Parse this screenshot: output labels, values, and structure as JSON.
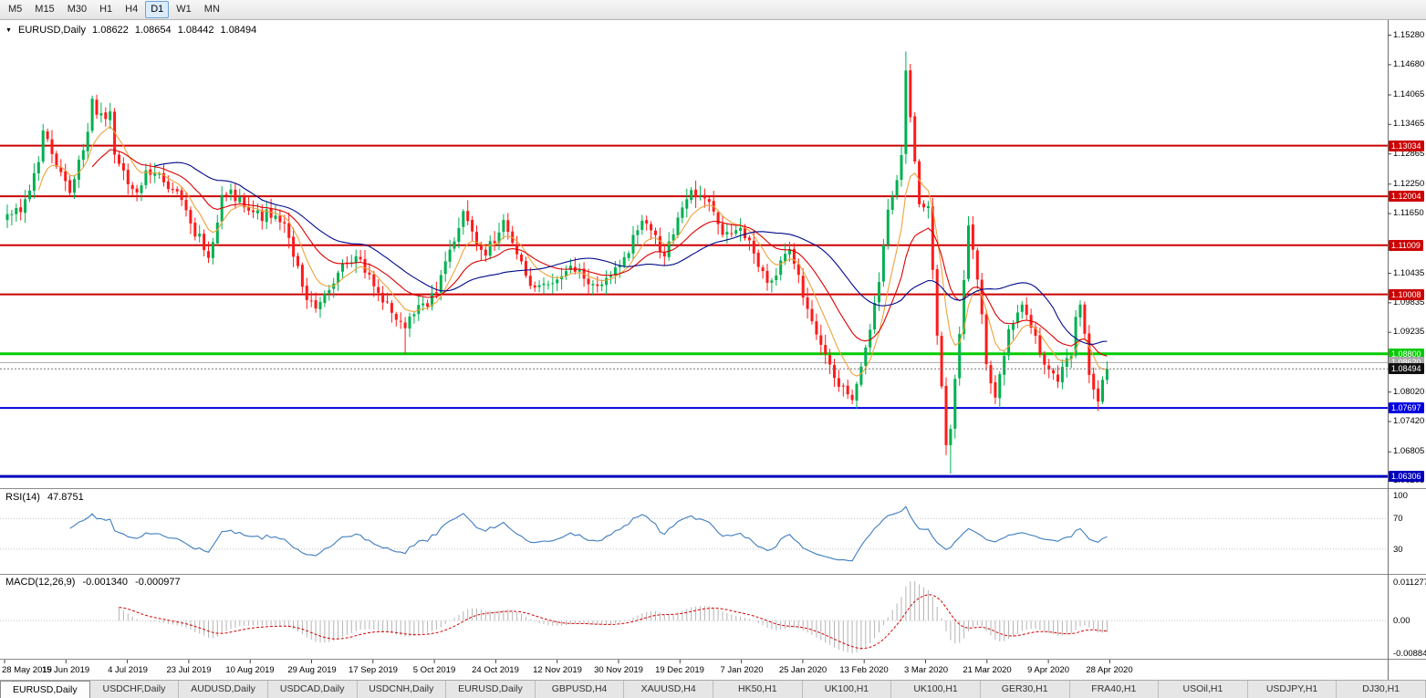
{
  "header": {
    "timeframes": [
      "M5",
      "M15",
      "M30",
      "H1",
      "H4",
      "D1",
      "W1",
      "MN"
    ],
    "active_timeframe": "D1"
  },
  "chart": {
    "symbol": "EURUSD,Daily",
    "open": "1.08622",
    "high": "1.08654",
    "low": "1.08442",
    "close": "1.08494"
  },
  "chart_data": {
    "type": "candlestick",
    "symbol": "EURUSD",
    "timeframe": "Daily",
    "bars": 247,
    "y_range": [
      1.0614,
      1.1555
    ],
    "price_anchors": [
      [
        0,
        1.1164
      ],
      [
        3,
        1.1168
      ],
      [
        7,
        1.127
      ],
      [
        8,
        1.1334
      ],
      [
        14,
        1.1207
      ],
      [
        17,
        1.1294
      ],
      [
        19,
        1.1399
      ],
      [
        20,
        1.1366
      ],
      [
        23,
        1.1373
      ],
      [
        24,
        1.1285
      ],
      [
        29,
        1.1208
      ],
      [
        31,
        1.1253
      ],
      [
        38,
        1.121
      ],
      [
        41,
        1.1145
      ],
      [
        45,
        1.1075
      ],
      [
        48,
        1.1203
      ],
      [
        52,
        1.1199
      ],
      [
        54,
        1.1171
      ],
      [
        62,
        1.1145
      ],
      [
        67,
        1.0989
      ],
      [
        69,
        1.0972
      ],
      [
        74,
        1.1045
      ],
      [
        76,
        1.1064
      ],
      [
        79,
        1.1072
      ],
      [
        82,
        1.1017
      ],
      [
        89,
        1.0932
      ],
      [
        92,
        1.0979
      ],
      [
        96,
        1.1004
      ],
      [
        97,
        1.104
      ],
      [
        102,
        1.117
      ],
      [
        103,
        1.115
      ],
      [
        107,
        1.108
      ],
      [
        111,
        1.1152
      ],
      [
        117,
        1.1018
      ],
      [
        121,
        1.1021
      ],
      [
        126,
        1.1059
      ],
      [
        132,
        1.1018
      ],
      [
        137,
        1.106
      ],
      [
        141,
        1.1131
      ],
      [
        143,
        1.1145
      ],
      [
        147,
        1.1078
      ],
      [
        153,
        1.1213
      ],
      [
        156,
        1.1196
      ],
      [
        160,
        1.1122
      ],
      [
        164,
        1.1136
      ],
      [
        170,
        1.1024
      ],
      [
        175,
        1.1093
      ],
      [
        180,
        1.0946
      ],
      [
        185,
        1.0831
      ],
      [
        189,
        1.0786
      ],
      [
        191,
        1.0854
      ],
      [
        195,
        1.1026
      ],
      [
        197,
        1.1173
      ],
      [
        200,
        1.1284
      ],
      [
        201,
        1.1456
      ],
      [
        203,
        1.1271
      ],
      [
        204,
        1.1184
      ],
      [
        206,
        1.118
      ],
      [
        208,
        1.0917
      ],
      [
        210,
        1.0694
      ],
      [
        211,
        1.0727
      ],
      [
        214,
        1.103
      ],
      [
        215,
        1.1141
      ],
      [
        217,
        1.1031
      ],
      [
        219,
        1.0859
      ],
      [
        221,
        1.0791
      ],
      [
        224,
        1.093
      ],
      [
        227,
        1.098
      ],
      [
        232,
        1.0858
      ],
      [
        235,
        1.0823
      ],
      [
        238,
        1.0875
      ],
      [
        239,
        1.0955
      ],
      [
        240,
        1.098
      ],
      [
        242,
        1.0837
      ],
      [
        244,
        1.0783
      ],
      [
        246,
        1.08494
      ]
    ],
    "extremes": [
      {
        "i": 201,
        "high": 1.1495
      },
      {
        "i": 211,
        "low": 1.0636
      },
      {
        "i": 89,
        "low": 1.0879
      },
      {
        "i": 189,
        "low": 1.0778
      },
      {
        "i": 244,
        "low": 1.0767
      }
    ],
    "horizontal_lines": [
      {
        "price": 1.13034,
        "label": "1.13034",
        "color": "#cc0000",
        "width": 2
      },
      {
        "price": 1.12004,
        "label": "1.12004",
        "color": "#cc0000",
        "width": 2
      },
      {
        "price": 1.11009,
        "label": "1.11009",
        "color": "#cc0000",
        "width": 2
      },
      {
        "price": 1.10008,
        "label": "1.10008",
        "color": "#cc0000",
        "width": 2
      },
      {
        "price": 1.088,
        "label": "1.08800",
        "color": "#00cc00",
        "width": 3
      },
      {
        "price": 1.0862,
        "label": "1.08620",
        "color": "#a8a8a8",
        "width": 1
      },
      {
        "price": 1.07697,
        "label": "1.07697",
        "color": "#0000e0",
        "width": 2
      },
      {
        "price": 1.06306,
        "label": "1.06306",
        "color": "#0000bb",
        "width": 3
      }
    ],
    "current_price": {
      "label": "1.08494",
      "value": 1.08494,
      "bg": "#111111"
    },
    "y_ticks": [
      "1.15280",
      "1.14680",
      "1.14065",
      "1.13465",
      "1.12865",
      "1.12250",
      "1.11650",
      "1.10435",
      "1.09835",
      "1.09235",
      "1.08020",
      "1.07420",
      "1.06805",
      "1.06205"
    ],
    "dates": [
      "28 May 2019",
      "15 Jun 2019",
      "4 Jul 2019",
      "23 Jul 2019",
      "10 Aug 2019",
      "29 Aug 2019",
      "17 Sep 2019",
      "5 Oct 2019",
      "24 Oct 2019",
      "12 Nov 2019",
      "30 Nov 2019",
      "19 Dec 2019",
      "7 Jan 2020",
      "25 Jan 2020",
      "13 Feb 2020",
      "3 Mar 2020",
      "21 Mar 2020",
      "9 Apr 2020",
      "28 Apr 2020"
    ],
    "candle_colors": {
      "up": "#00b050",
      "down": "#ff1a1a"
    },
    "moving_averages": [
      {
        "name": "fast",
        "method": "ema",
        "period": 8,
        "color": "#eda33c"
      },
      {
        "name": "mid",
        "method": "ema",
        "period": 20,
        "color": "#dd0000"
      },
      {
        "name": "slow",
        "method": "sma",
        "period": 34,
        "color": "#000a8c"
      }
    ],
    "indicators": {
      "rsi": {
        "title": "RSI(14)",
        "value": "47.8751",
        "period": 14,
        "levels": [
          70,
          30
        ],
        "axis_labels": [
          "100",
          "70",
          "30"
        ],
        "color": "#3f7cbf"
      },
      "macd": {
        "title": "MACD(12,26,9)",
        "value_main": "-0.001340",
        "value_signal": "-0.000977",
        "fast": 12,
        "slow": 26,
        "signal": 9,
        "axis_labels": [
          "0.011277",
          "0.00",
          "-0.008845"
        ],
        "hist_color": "#b4b4b4",
        "signal_color": "#d40000"
      }
    }
  },
  "footer_tabs": {
    "tabs": [
      {
        "label": "EURUSD,Daily",
        "active": true
      },
      {
        "label": "USDCHF,Daily",
        "active": false
      },
      {
        "label": "AUDUSD,Daily",
        "active": false
      },
      {
        "label": "USDCAD,Daily",
        "active": false
      },
      {
        "label": "USDCNH,Daily",
        "active": false
      },
      {
        "label": "EURUSD,Daily",
        "active": false
      },
      {
        "label": "GBPUSD,H4",
        "active": false
      },
      {
        "label": "XAUUSD,H4",
        "active": false
      },
      {
        "label": "HK50,H1",
        "active": false
      },
      {
        "label": "UK100,H1",
        "active": false
      },
      {
        "label": "UK100,H1",
        "active": false
      },
      {
        "label": "GER30,H1",
        "active": false
      },
      {
        "label": "FRA40,H1",
        "active": false
      },
      {
        "label": "USOil,H1",
        "active": false
      },
      {
        "label": "USDJPY,H1",
        "active": false
      },
      {
        "label": "DJ30,H1",
        "active": false
      }
    ]
  }
}
